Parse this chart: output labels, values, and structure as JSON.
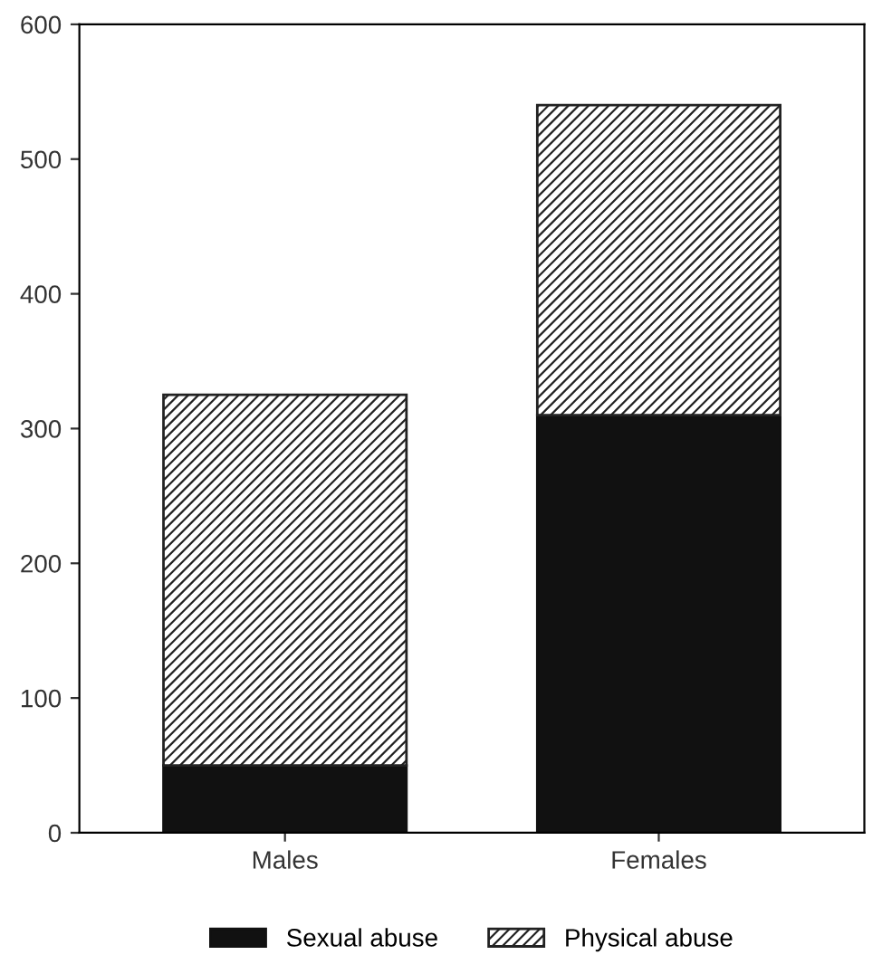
{
  "chart_data": {
    "type": "bar",
    "stacked": true,
    "categories": [
      "Males",
      "Females"
    ],
    "series": [
      {
        "name": "Sexual abuse",
        "color": "#111111",
        "values": [
          50,
          310
        ]
      },
      {
        "name": "Physical abuse",
        "color": "#222222",
        "values": [
          275,
          230
        ]
      }
    ],
    "ylim": [
      0,
      600
    ],
    "yticks": [
      0,
      100,
      200,
      300,
      400,
      500,
      600
    ],
    "grid": false,
    "legend": "bottom"
  }
}
